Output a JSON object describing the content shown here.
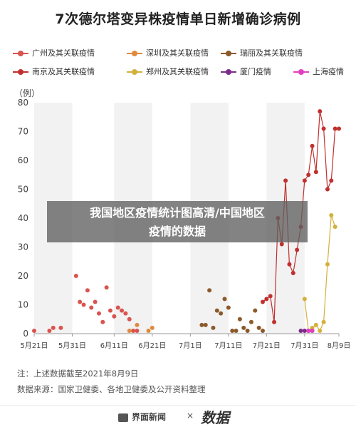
{
  "title": "7次德尔塔变异株疫情单日新增确诊病例",
  "unit_label": "（例）",
  "overlay": {
    "line1": "我国地区疫情统计图高清/中国地区",
    "line2": "疫情的数据"
  },
  "notes": {
    "note1": "注：上述数据截至2021年8月9日",
    "note2": "数据来源：国家卫健委、各地卫健委及公开资料整理"
  },
  "footer": {
    "brand": "界面新闻",
    "times": "×",
    "brand2": "数据"
  },
  "chart_data": {
    "type": "line",
    "title": "7次德尔塔变异株疫情单日新增确诊病例",
    "ylabel": "（例）",
    "ylim": [
      0,
      80
    ],
    "yticks": [
      0,
      10,
      20,
      30,
      40,
      50,
      60,
      70,
      80
    ],
    "xlim": [
      "2021-05-21",
      "2021-08-09"
    ],
    "xticks": [
      {
        "date": "2021-05-21",
        "label": "5月21日"
      },
      {
        "date": "2021-05-31",
        "label": "5月31日"
      },
      {
        "date": "2021-06-11",
        "label": "6月11日"
      },
      {
        "date": "2021-06-21",
        "label": "6月21日"
      },
      {
        "date": "2021-07-01",
        "label": "7月1日"
      },
      {
        "date": "2021-07-11",
        "label": "7月11日"
      },
      {
        "date": "2021-07-21",
        "label": "7月21日"
      },
      {
        "date": "2021-07-31",
        "label": "7月31日"
      },
      {
        "date": "2021-08-09",
        "label": "8月9日"
      }
    ],
    "grid": false,
    "legend_position": "top",
    "series": [
      {
        "name": "广州及其关联疫情",
        "color": "#d9534f",
        "line": false,
        "x": [
          "2021-05-21",
          "2021-05-25",
          "2021-05-26",
          "2021-05-28",
          "2021-06-01",
          "2021-06-02",
          "2021-06-03",
          "2021-06-04",
          "2021-06-05",
          "2021-06-06",
          "2021-06-07",
          "2021-06-08",
          "2021-06-09",
          "2021-06-10",
          "2021-06-11",
          "2021-06-12",
          "2021-06-13",
          "2021-06-14",
          "2021-06-15",
          "2021-06-16",
          "2021-06-17"
        ],
        "y": [
          1,
          1,
          2,
          2,
          20,
          11,
          10,
          15,
          9,
          11,
          7,
          4,
          16,
          8,
          6,
          9,
          8,
          7,
          5,
          1,
          1
        ]
      },
      {
        "name": "深圳及其关联疫情",
        "color": "#e08a3c",
        "line": false,
        "x": [
          "2021-06-15",
          "2021-06-17",
          "2021-06-20",
          "2021-06-21"
        ],
        "y": [
          1,
          3,
          1,
          2
        ]
      },
      {
        "name": "瑞丽及其关联疫情",
        "color": "#8b5a2b",
        "line": false,
        "x": [
          "2021-07-04",
          "2021-07-05",
          "2021-07-06",
          "2021-07-07",
          "2021-07-08",
          "2021-07-09",
          "2021-07-10",
          "2021-07-11",
          "2021-07-12",
          "2021-07-13",
          "2021-07-14",
          "2021-07-15",
          "2021-07-16",
          "2021-07-17",
          "2021-07-18",
          "2021-07-19",
          "2021-07-20"
        ],
        "y": [
          3,
          3,
          15,
          2,
          8,
          7,
          12,
          9,
          1,
          1,
          5,
          2,
          1,
          4,
          8,
          2,
          1
        ]
      },
      {
        "name": "南京及其关联疫情",
        "color": "#c0302f",
        "line": true,
        "x": [
          "2021-07-20",
          "2021-07-21",
          "2021-07-22",
          "2021-07-23",
          "2021-07-24",
          "2021-07-25",
          "2021-07-26",
          "2021-07-27",
          "2021-07-28",
          "2021-07-29",
          "2021-07-30",
          "2021-07-31",
          "2021-08-01",
          "2021-08-02",
          "2021-08-03",
          "2021-08-04",
          "2021-08-05",
          "2021-08-06",
          "2021-08-07",
          "2021-08-08",
          "2021-08-09"
        ],
        "y": [
          11,
          12,
          13,
          4,
          40,
          31,
          53,
          24,
          21,
          29,
          37,
          53,
          55,
          65,
          56,
          77,
          71,
          50,
          53,
          71,
          71
        ]
      },
      {
        "name": "郑州及其关联疫情",
        "color": "#d4b03c",
        "line": true,
        "x": [
          "2021-07-31",
          "2021-08-01",
          "2021-08-02",
          "2021-08-03",
          "2021-08-04",
          "2021-08-05",
          "2021-08-06",
          "2021-08-07",
          "2021-08-08"
        ],
        "y": [
          12,
          1,
          2,
          3,
          1,
          4,
          24,
          41,
          37
        ]
      },
      {
        "name": "厦门疫情",
        "color": "#7b2d8b",
        "line": false,
        "x": [
          "2021-07-30",
          "2021-07-31",
          "2021-08-01",
          "2021-08-02"
        ],
        "y": [
          1,
          1,
          1,
          1
        ]
      },
      {
        "name": "上海疫情",
        "color": "#e040c0",
        "line": false,
        "x": [
          "2021-08-01",
          "2021-08-02"
        ],
        "y": [
          1,
          1
        ]
      }
    ]
  }
}
